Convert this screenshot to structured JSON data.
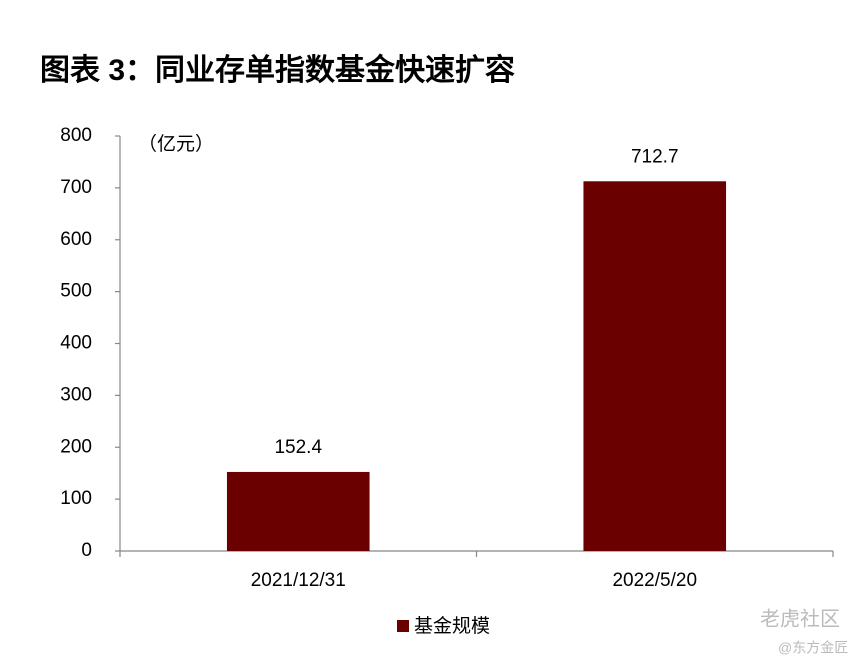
{
  "chart_data": {
    "type": "bar",
    "title": "图表 3：同业存单指数基金快速扩容",
    "unit_label": "（亿元）",
    "categories": [
      "2021/12/31",
      "2022/5/20"
    ],
    "series": [
      {
        "name": "基金规模",
        "color": "#6b0000",
        "values": [
          152.4,
          712.7
        ]
      }
    ],
    "ylim": [
      0,
      800
    ],
    "yticks": [
      0,
      100,
      200,
      300,
      400,
      500,
      600,
      700,
      800
    ],
    "grid": false,
    "legend": "bottom",
    "data_labels": true
  },
  "watermarks": [
    "老虎社区",
    "@东方金匠"
  ]
}
